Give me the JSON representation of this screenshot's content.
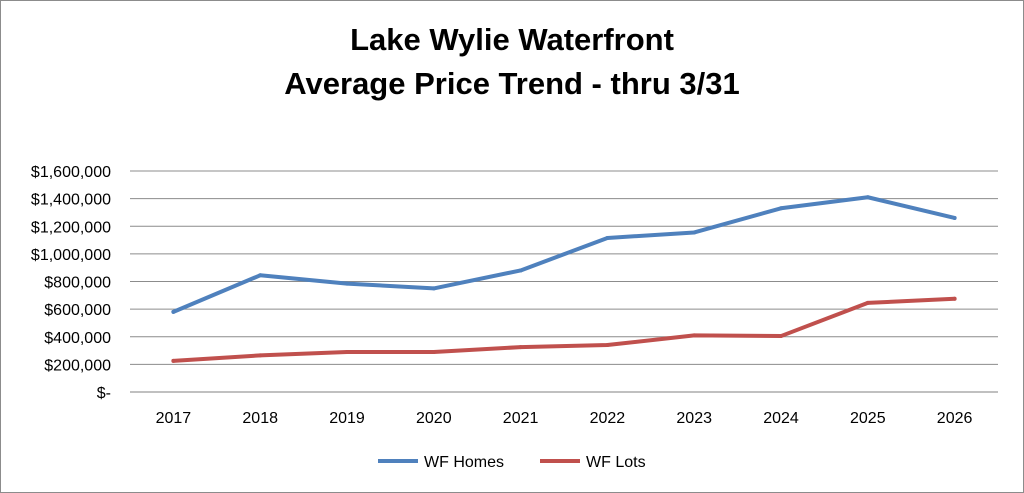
{
  "chart_data": {
    "type": "line",
    "title_lines": [
      "Lake Wylie Waterfront",
      "Average Price Trend - thru 3/31"
    ],
    "categories": [
      "2017",
      "2018",
      "2019",
      "2020",
      "2021",
      "2022",
      "2023",
      "2024",
      "2025",
      "2026"
    ],
    "series": [
      {
        "name": "WF Homes",
        "color": "#4f81bd",
        "values": [
          580000,
          845000,
          785000,
          750000,
          880000,
          1115000,
          1155000,
          1330000,
          1410000,
          1260000
        ]
      },
      {
        "name": "WF Lots",
        "color": "#c0504d",
        "values": [
          225000,
          265000,
          290000,
          290000,
          325000,
          340000,
          410000,
          405000,
          645000,
          675000
        ]
      }
    ],
    "y_ticks": [
      0,
      200000,
      400000,
      600000,
      800000,
      1000000,
      1200000,
      1400000,
      1600000
    ],
    "y_tick_labels": [
      "$-",
      "$200,000",
      "$400,000",
      "$600,000",
      "$800,000",
      "$1,000,000",
      "$1,200,000",
      "$1,400,000",
      "$1,600,000"
    ],
    "ylim": [
      0,
      1600000
    ],
    "xlabel": "",
    "ylabel": "",
    "grid": true,
    "legend_position": "bottom"
  }
}
